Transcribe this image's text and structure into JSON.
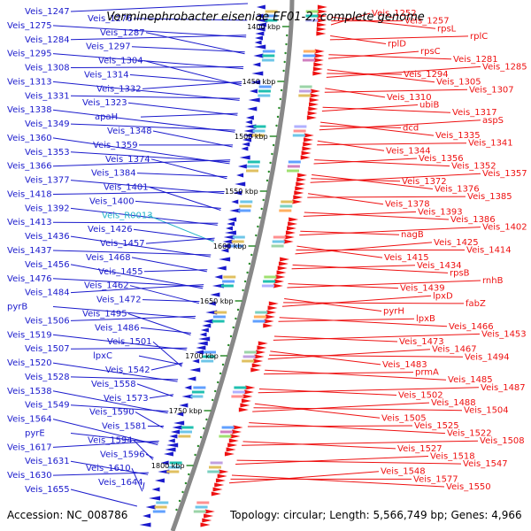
{
  "title": "Verminephrobacter eiseniae EF01-2, complete genome",
  "footer": {
    "accession": "Accession: NC_008786",
    "summary": "Topology: circular; Length: 5,566,749 bp; Genes: 4,966"
  },
  "colors": {
    "left": "#1a1acc",
    "right": "#ee1111",
    "rna": "#22b3c8",
    "backbone": "#888888",
    "tick": "#2a8a2a"
  },
  "kbp_marks": [
    "1400 kbp",
    "1450 kbp",
    "1500 kbp",
    "1550 kbp",
    "1600 kbp",
    "1650 kbp",
    "1700 kbp",
    "1750 kbp",
    "1800 kbp"
  ],
  "left_labels": [
    {
      "text": "Veis_1247",
      "cls": "gene"
    },
    {
      "text": "Veis_1276",
      "cls": "gene"
    },
    {
      "text": "Veis_1275",
      "cls": "gene"
    },
    {
      "text": "Veis_1287",
      "cls": "gene"
    },
    {
      "text": "Veis_1284",
      "cls": "gene"
    },
    {
      "text": "Veis_1297",
      "cls": "gene"
    },
    {
      "text": "Veis_1295",
      "cls": "gene"
    },
    {
      "text": "Veis_1304",
      "cls": "gene"
    },
    {
      "text": "Veis_1308",
      "cls": "gene"
    },
    {
      "text": "Veis_1314",
      "cls": "gene"
    },
    {
      "text": "Veis_1313",
      "cls": "gene"
    },
    {
      "text": "Veis_1332",
      "cls": "gene"
    },
    {
      "text": "Veis_1331",
      "cls": "gene"
    },
    {
      "text": "Veis_1323",
      "cls": "gene"
    },
    {
      "text": "Veis_1338",
      "cls": "gene"
    },
    {
      "text": "apaH",
      "cls": "gene"
    },
    {
      "text": "Veis_1349",
      "cls": "gene"
    },
    {
      "text": "Veis_1348",
      "cls": "gene"
    },
    {
      "text": "Veis_1360",
      "cls": "gene"
    },
    {
      "text": "Veis_1359",
      "cls": "gene"
    },
    {
      "text": "Veis_1353",
      "cls": "gene"
    },
    {
      "text": "Veis_1374",
      "cls": "gene"
    },
    {
      "text": "Veis_1366",
      "cls": "gene"
    },
    {
      "text": "Veis_1384",
      "cls": "gene"
    },
    {
      "text": "Veis_1377",
      "cls": "gene"
    },
    {
      "text": "Veis_1401",
      "cls": "gene"
    },
    {
      "text": "Veis_1418",
      "cls": "gene"
    },
    {
      "text": "Veis_1400",
      "cls": "gene"
    },
    {
      "text": "Veis_1392",
      "cls": "gene"
    },
    {
      "text": "Veis_R0013",
      "cls": "rna"
    },
    {
      "text": "Veis_1413",
      "cls": "gene"
    },
    {
      "text": "Veis_1426",
      "cls": "gene"
    },
    {
      "text": "Veis_1436",
      "cls": "gene"
    },
    {
      "text": "Veis_1457",
      "cls": "gene"
    },
    {
      "text": "Veis_1437",
      "cls": "gene"
    },
    {
      "text": "Veis_1468",
      "cls": "gene"
    },
    {
      "text": "Veis_1456",
      "cls": "gene"
    },
    {
      "text": "Veis_1455",
      "cls": "gene"
    },
    {
      "text": "Veis_1476",
      "cls": "gene"
    },
    {
      "text": "Veis_1462",
      "cls": "gene"
    },
    {
      "text": "Veis_1484",
      "cls": "gene"
    },
    {
      "text": "Veis_1472",
      "cls": "gene"
    },
    {
      "text": "pyrB",
      "cls": "gene"
    },
    {
      "text": "Veis_1495",
      "cls": "gene"
    },
    {
      "text": "Veis_1506",
      "cls": "gene"
    },
    {
      "text": "Veis_1486",
      "cls": "gene"
    },
    {
      "text": "Veis_1519",
      "cls": "gene"
    },
    {
      "text": "Veis_1501",
      "cls": "gene"
    },
    {
      "text": "Veis_1507",
      "cls": "gene"
    },
    {
      "text": "lpxC",
      "cls": "gene"
    },
    {
      "text": "Veis_1520",
      "cls": "gene"
    },
    {
      "text": "Veis_1542",
      "cls": "gene"
    },
    {
      "text": "Veis_1528",
      "cls": "gene"
    },
    {
      "text": "Veis_1558",
      "cls": "gene"
    },
    {
      "text": "Veis_1538",
      "cls": "gene"
    },
    {
      "text": "Veis_1573",
      "cls": "gene"
    },
    {
      "text": "Veis_1549",
      "cls": "gene"
    },
    {
      "text": "Veis_1590",
      "cls": "gene"
    },
    {
      "text": "Veis_1564",
      "cls": "gene"
    },
    {
      "text": "Veis_1581",
      "cls": "gene"
    },
    {
      "text": "pyrE",
      "cls": "gene"
    },
    {
      "text": "Veis_1594",
      "cls": "gene"
    },
    {
      "text": "Veis_1617",
      "cls": "gene"
    },
    {
      "text": "Veis_1596",
      "cls": "gene"
    },
    {
      "text": "Veis_1631",
      "cls": "gene"
    },
    {
      "text": "Veis_1610",
      "cls": "gene"
    },
    {
      "text": "Veis_1630",
      "cls": "gene"
    },
    {
      "text": "Veis_1644",
      "cls": "gene"
    },
    {
      "text": "Veis_1655",
      "cls": "gene"
    }
  ],
  "right_labels": [
    "Veis_1252",
    "Veis_1257",
    "rpsL",
    "rplC",
    "rplD",
    "rpsC",
    "Veis_1281",
    "Veis_1285",
    "Veis_1294",
    "Veis_1305",
    "Veis_1307",
    "Veis_1310",
    "ubiB",
    "Veis_1317",
    "aspS",
    "dcd",
    "Veis_1335",
    "Veis_1341",
    "Veis_1344",
    "Veis_1356",
    "Veis_1352",
    "Veis_1357",
    "Veis_1372",
    "Veis_1376",
    "Veis_1385",
    "Veis_1378",
    "Veis_1393",
    "Veis_1386",
    "Veis_1402",
    "nagB",
    "Veis_1425",
    "Veis_1414",
    "Veis_1415",
    "Veis_1434",
    "rpsB",
    "rnhB",
    "Veis_1439",
    "lpxD",
    "fabZ",
    "pyrH",
    "lpxB",
    "Veis_1466",
    "Veis_1453",
    "Veis_1473",
    "Veis_1467",
    "Veis_1494",
    "Veis_1483",
    "prmA",
    "Veis_1485",
    "Veis_1487",
    "Veis_1502",
    "Veis_1488",
    "Veis_1504",
    "Veis_1505",
    "Veis_1525",
    "Veis_1522",
    "Veis_1508",
    "Veis_1527",
    "Veis_1518",
    "Veis_1547",
    "Veis_1548",
    "Veis_1577",
    "Veis_1550"
  ]
}
